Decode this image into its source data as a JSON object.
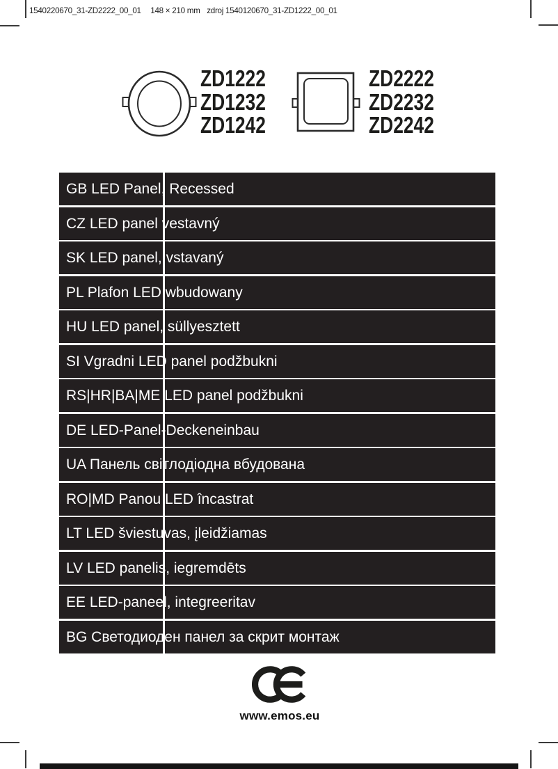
{
  "page": {
    "header": {
      "doc_id": "1540220670_31-ZD2222_00_01",
      "dimensions": "148 × 210 mm",
      "source": "zdroj 1540120670_31-ZD1222_00_01"
    },
    "products": [
      {
        "shape": "round",
        "icon": "round-recessed-panel-icon",
        "models": [
          "ZD1222",
          "ZD1232",
          "ZD1242"
        ]
      },
      {
        "shape": "square",
        "icon": "square-recessed-panel-icon",
        "models": [
          "ZD2222",
          "ZD2232",
          "ZD2242"
        ]
      }
    ],
    "table_rows": [
      {
        "code": "GB",
        "name": "LED Panel, Recessed"
      },
      {
        "code": "CZ",
        "name": "LED panel vestavný"
      },
      {
        "code": "SK",
        "name": "LED panel, vstavaný"
      },
      {
        "code": "PL",
        "name": "Plafon LED wbudowany"
      },
      {
        "code": "HU",
        "name": "LED panel, süllyesztett"
      },
      {
        "code": "SI",
        "name": "Vgradni LED panel podžbukni"
      },
      {
        "code": "RS|HR|BA|ME",
        "name": "LED panel podžbukni"
      },
      {
        "code": "DE",
        "name": "LED-Panel-Deckeneinbau"
      },
      {
        "code": "UA",
        "name": "Панель світлодіодна вбудована"
      },
      {
        "code": "RO|MD",
        "name": "Panou LED încastrat"
      },
      {
        "code": "LT",
        "name": "LED šviestuvas, įleidžiamas"
      },
      {
        "code": "LV",
        "name": "LED panelis, iegremdēts"
      },
      {
        "code": "EE",
        "name": "LED-paneel, integreeritav"
      },
      {
        "code": "BG",
        "name": "Светодиоден панел за скрит монтаж"
      }
    ],
    "footer": {
      "ce_mark": "CE",
      "ce_icon": "ce-mark-icon",
      "website": "www.emos.eu"
    },
    "colors": {
      "row_bg": "#231f20",
      "row_text": "#ffffff",
      "ink": "#1d1d1b"
    }
  }
}
